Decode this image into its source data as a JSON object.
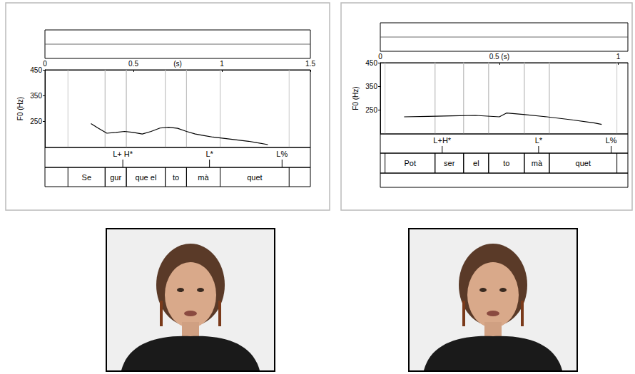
{
  "chart_data": [
    {
      "type": "line",
      "y_label": "F0 (Hz)",
      "x_label": "(s)",
      "color": "#000000",
      "xlim": [
        0,
        1.5
      ],
      "xticks": [
        0,
        0.5,
        1,
        1.5
      ],
      "ylim": [
        150,
        450
      ],
      "yticks": [
        250,
        350,
        450
      ],
      "x": [
        0.26,
        0.3,
        0.35,
        0.4,
        0.45,
        0.5,
        0.55,
        0.6,
        0.65,
        0.7,
        0.75,
        0.8,
        0.85,
        0.9,
        0.95,
        1.0,
        1.05,
        1.1,
        1.15,
        1.2,
        1.26
      ],
      "values": [
        242,
        225,
        205,
        208,
        212,
        208,
        202,
        212,
        225,
        228,
        224,
        212,
        202,
        196,
        190,
        186,
        182,
        178,
        174,
        168,
        161
      ],
      "tones": [
        {
          "label": "L+ H*",
          "x": 0.44
        },
        {
          "label": "L*",
          "x": 0.93
        },
        {
          "label": "L%",
          "x": 1.34
        }
      ],
      "syllables": [
        {
          "text": "Se",
          "start": 0.13,
          "end": 0.34
        },
        {
          "text": "gur",
          "start": 0.34,
          "end": 0.46
        },
        {
          "text": "que el",
          "start": 0.46,
          "end": 0.68
        },
        {
          "text": "to",
          "start": 0.68,
          "end": 0.8
        },
        {
          "text": "mà",
          "start": 0.8,
          "end": 0.99
        },
        {
          "text": "quet",
          "start": 0.99,
          "end": 1.38
        }
      ]
    },
    {
      "type": "line",
      "y_label": "F0 (Hz)",
      "color": "#000000",
      "xlim": [
        0,
        1.04
      ],
      "xticks": [
        0,
        {
          "value": 0.5,
          "label": "0.5 (s)"
        },
        1
      ],
      "ylim": [
        150,
        450
      ],
      "yticks": [
        250,
        350,
        450
      ],
      "x": [
        0.1,
        0.2,
        0.3,
        0.4,
        0.5,
        0.53,
        0.6,
        0.7,
        0.8,
        0.9,
        0.93
      ],
      "values": [
        222,
        224,
        226,
        228,
        222,
        238,
        232,
        222,
        210,
        196,
        190
      ],
      "tones": [
        {
          "label": "L+H*",
          "x": 0.26
        },
        {
          "label": "L*",
          "x": 0.665
        },
        {
          "label": "L%",
          "x": 0.97
        }
      ],
      "syllables": [
        {
          "text": "Pot",
          "start": 0.02,
          "end": 0.23
        },
        {
          "text": "ser",
          "start": 0.23,
          "end": 0.35
        },
        {
          "text": "el",
          "start": 0.35,
          "end": 0.455
        },
        {
          "text": "to",
          "start": 0.455,
          "end": 0.605
        },
        {
          "text": "mà",
          "start": 0.605,
          "end": 0.71
        },
        {
          "text": "quet",
          "start": 0.71,
          "end": 0.994
        }
      ]
    }
  ]
}
